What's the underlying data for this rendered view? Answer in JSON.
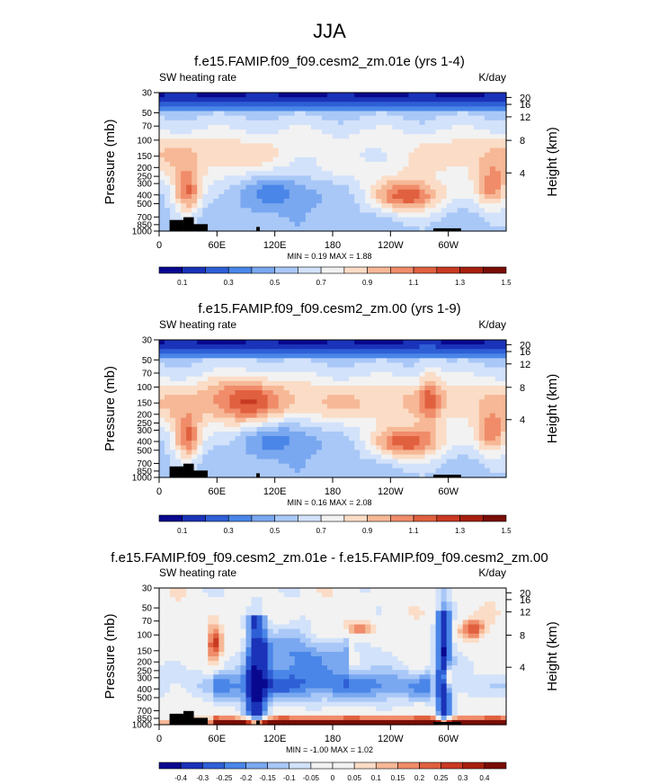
{
  "main_title": "JJA",
  "chart_data": [
    {
      "type": "heatmap",
      "title": "f.e15.FAMIP.f09_f09.cesm2_zm.01e (yrs 1-4)",
      "left_label": "SW heating rate",
      "right_label": "K/day",
      "xlabel": "",
      "ylabel": "Pressure (mb)",
      "y2label": "Height (km)",
      "x_ticks": [
        "0",
        "60E",
        "120E",
        "180",
        "120W",
        "60W"
      ],
      "y_ticks": [
        "30",
        "50",
        "70",
        "100",
        "150",
        "200",
        "250",
        "300",
        "400",
        "500",
        "700",
        "850",
        "1000"
      ],
      "y2_ticks": [
        "20",
        "16",
        "12",
        "8",
        "4"
      ],
      "y_scale": "log",
      "min_max_text": "MIN =  0.19  MAX =  1.88",
      "min": 0.19,
      "max": 1.88,
      "colorbar_labels": [
        "0.1",
        "0.3",
        "0.5",
        "0.7",
        "0.9",
        "1.1",
        "1.3",
        "1.5"
      ],
      "colorbar_colors": [
        "#08088f",
        "#1a33b8",
        "#2f5fd6",
        "#4a86e8",
        "#7aa8f0",
        "#a9c8f7",
        "#d2e2fa",
        "#f2f2f2",
        "#fbdcc6",
        "#f6b896",
        "#f08c6a",
        "#e0603f",
        "#c93a22",
        "#a8200f",
        "#7a0d07"
      ]
    },
    {
      "type": "heatmap",
      "title": "f.e15.FAMIP.f09_f09.cesm2_zm.00 (yrs 1-9)",
      "left_label": "SW heating rate",
      "right_label": "K/day",
      "xlabel": "",
      "ylabel": "Pressure (mb)",
      "y2label": "Height (km)",
      "x_ticks": [
        "0",
        "60E",
        "120E",
        "180",
        "120W",
        "60W"
      ],
      "y_ticks": [
        "30",
        "50",
        "70",
        "100",
        "150",
        "200",
        "250",
        "300",
        "400",
        "500",
        "700",
        "850",
        "1000"
      ],
      "y2_ticks": [
        "20",
        "16",
        "12",
        "8",
        "4"
      ],
      "y_scale": "log",
      "min_max_text": "MIN =  0.16  MAX =  2.08",
      "min": 0.16,
      "max": 2.08,
      "colorbar_labels": [
        "0.1",
        "0.3",
        "0.5",
        "0.7",
        "0.9",
        "1.1",
        "1.3",
        "1.5"
      ],
      "colorbar_colors": [
        "#08088f",
        "#1a33b8",
        "#2f5fd6",
        "#4a86e8",
        "#7aa8f0",
        "#a9c8f7",
        "#d2e2fa",
        "#f2f2f2",
        "#fbdcc6",
        "#f6b896",
        "#f08c6a",
        "#e0603f",
        "#c93a22",
        "#a8200f",
        "#7a0d07"
      ]
    },
    {
      "type": "heatmap",
      "title": "f.e15.FAMIP.f09_f09.cesm2_zm.01e - f.e15.FAMIP.f09_f09.cesm2_zm.00",
      "left_label": "SW heating rate",
      "right_label": "K/day",
      "xlabel": "",
      "ylabel": "Pressure (mb)",
      "y2label": "Height (km)",
      "x_ticks": [
        "0",
        "60E",
        "120E",
        "180",
        "120W",
        "60W"
      ],
      "y_ticks": [
        "30",
        "50",
        "70",
        "100",
        "150",
        "200",
        "250",
        "300",
        "400",
        "500",
        "700",
        "850",
        "1000"
      ],
      "y2_ticks": [
        "20",
        "16",
        "12",
        "8",
        "4"
      ],
      "y_scale": "log",
      "min_max_text": "MIN = -1.00  MAX =  1.02",
      "min": -1.0,
      "max": 1.02,
      "colorbar_labels": [
        "-0.4",
        "-0.3",
        "-0.25",
        "-0.2",
        "-0.15",
        "-0.1",
        "-0.05",
        "0",
        "0.05",
        "0.1",
        "0.15",
        "0.2",
        "0.25",
        "0.3",
        "0.4"
      ],
      "colorbar_colors": [
        "#08088f",
        "#1a33b8",
        "#2f5fd6",
        "#4a86e8",
        "#7aa8f0",
        "#a9c8f7",
        "#d2e2fa",
        "#f2f2f2",
        "#f2f2f2",
        "#fbdcc6",
        "#f6b896",
        "#f08c6a",
        "#e0603f",
        "#c93a22",
        "#a8200f",
        "#7a0d07"
      ]
    }
  ]
}
